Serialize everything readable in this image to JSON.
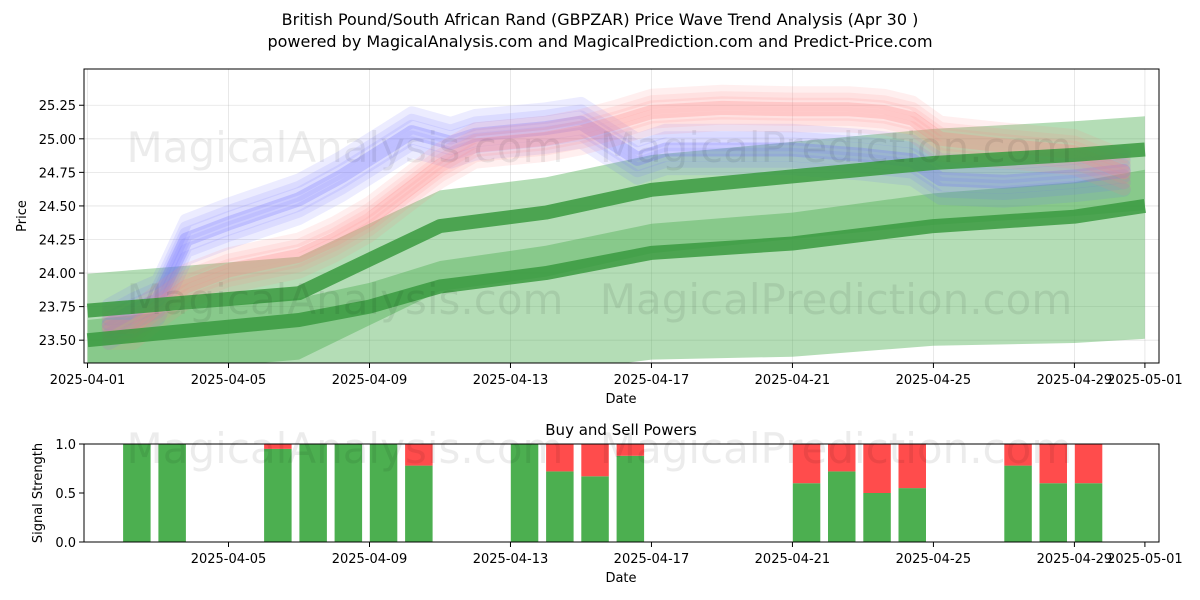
{
  "title_line1": "British Pound/South African Rand (GBPZAR) Price Wave Trend Analysis (Apr 30 )",
  "title_line2": "powered by MagicalAnalysis.com and MagicalPrediction.com and Predict-Price.com",
  "watermarks": [
    "MagicalAnalysis.com",
    "MagicalPrediction.com"
  ],
  "colors": {
    "blue": "#6b6bff",
    "red": "#ff8080",
    "green": "#4caf50",
    "buy": "#4caf50",
    "sell": "#ff4c4c"
  },
  "chart_data": [
    {
      "type": "line",
      "title": "",
      "xlabel": "Date",
      "ylabel": "Price",
      "ylim": [
        23.33,
        25.52
      ],
      "xlim_days": [
        -0.1,
        30.4
      ],
      "x_ticks": [
        "2025-04-01",
        "2025-04-05",
        "2025-04-09",
        "2025-04-13",
        "2025-04-17",
        "2025-04-21",
        "2025-04-25",
        "2025-04-29",
        "2025-05-01"
      ],
      "x_tick_days": [
        0,
        4,
        8,
        12,
        16,
        20,
        24,
        28,
        30
      ],
      "y_ticks": [
        "23.50",
        "23.75",
        "24.00",
        "24.25",
        "24.50",
        "24.75",
        "25.00",
        "25.25"
      ],
      "y_tick_values": [
        23.5,
        23.75,
        24.0,
        24.25,
        24.5,
        24.75,
        25.0,
        25.25
      ],
      "grid": true,
      "series": [
        {
          "name": "blue-wave",
          "color": "#6b6bff",
          "x_days": [
            0.6,
            1.3,
            2.0,
            2.8,
            4.0,
            6.0,
            7.2,
            8.6,
            9.2,
            10.3,
            11.0,
            13.0,
            14.0,
            15.6,
            16.4,
            18.0,
            20.0,
            22.0,
            23.4,
            24.2,
            26.0,
            28.0,
            29.4
          ],
          "values": [
            23.62,
            23.72,
            23.8,
            24.25,
            24.37,
            24.55,
            24.72,
            24.95,
            25.05,
            24.97,
            25.03,
            25.08,
            25.12,
            24.85,
            24.92,
            24.92,
            24.92,
            24.88,
            24.84,
            24.7,
            24.68,
            24.72,
            24.76
          ],
          "band_spread": 0.14
        },
        {
          "name": "red-wave",
          "color": "#ff8080",
          "x_days": [
            0.6,
            1.3,
            2.0,
            2.8,
            4.0,
            6.0,
            7.0,
            8.0,
            9.0,
            10.0,
            11.0,
            13.0,
            14.0,
            15.0,
            16.0,
            18.0,
            20.0,
            21.6,
            22.6,
            23.4,
            24.2,
            26.0,
            28.0,
            29.4
          ],
          "values": [
            23.6,
            23.6,
            23.75,
            23.9,
            24.02,
            24.13,
            24.25,
            24.4,
            24.6,
            24.8,
            24.95,
            25.0,
            25.05,
            25.12,
            25.2,
            25.23,
            25.22,
            25.22,
            25.2,
            25.15,
            25.0,
            24.95,
            24.9,
            24.75
          ],
          "band_spread": 0.12
        },
        {
          "name": "green-trend-upper",
          "color": "#4caf50",
          "x_days": [
            0.0,
            6.0,
            8.0,
            10.0,
            13.0,
            16.0,
            20.0,
            24.0,
            28.0,
            30.0
          ],
          "values": [
            23.72,
            23.85,
            24.1,
            24.35,
            24.45,
            24.62,
            24.72,
            24.82,
            24.88,
            24.92
          ],
          "band_width": 0.08,
          "envelope": [
            0.5,
            0.45
          ]
        },
        {
          "name": "green-trend-lower",
          "color": "#4caf50",
          "x_days": [
            0.0,
            6.0,
            8.0,
            10.0,
            13.0,
            16.0,
            20.0,
            24.0,
            28.0,
            30.0
          ],
          "values": [
            23.5,
            23.65,
            23.75,
            23.9,
            24.0,
            24.15,
            24.22,
            24.35,
            24.42,
            24.5
          ],
          "band_width": 0.08,
          "envelope": [
            0.25,
            0.45
          ]
        }
      ]
    },
    {
      "type": "bar",
      "title": "Buy and Sell Powers",
      "xlabel": "Date",
      "ylabel": "Signal Strength",
      "ylim": [
        0,
        1
      ],
      "y_ticks": [
        "0.0",
        "0.5",
        "1.0"
      ],
      "y_tick_values": [
        0,
        0.5,
        1
      ],
      "x_ticks": [
        "2025-04-05",
        "2025-04-09",
        "2025-04-13",
        "2025-04-17",
        "2025-04-21",
        "2025-04-25",
        "2025-04-29",
        "2025-05-01"
      ],
      "x_tick_days": [
        4,
        8,
        12,
        16,
        20,
        24,
        28,
        30
      ],
      "series": [
        {
          "name": "Buy",
          "color": "#4caf50"
        },
        {
          "name": "Sell",
          "color": "#ff4c4c"
        }
      ],
      "bars": [
        {
          "day": 1.4,
          "buy": 1.0,
          "sell": 0.0
        },
        {
          "day": 2.4,
          "buy": 1.0,
          "sell": 0.0
        },
        {
          "day": 5.4,
          "buy": 0.95,
          "sell": 0.05
        },
        {
          "day": 6.4,
          "buy": 1.0,
          "sell": 0.0
        },
        {
          "day": 7.4,
          "buy": 1.0,
          "sell": 0.0
        },
        {
          "day": 8.4,
          "buy": 1.0,
          "sell": 0.0
        },
        {
          "day": 9.4,
          "buy": 0.78,
          "sell": 0.22
        },
        {
          "day": 12.4,
          "buy": 1.0,
          "sell": 0.0
        },
        {
          "day": 13.4,
          "buy": 0.72,
          "sell": 0.28
        },
        {
          "day": 14.4,
          "buy": 0.67,
          "sell": 0.33
        },
        {
          "day": 15.4,
          "buy": 0.88,
          "sell": 0.12
        },
        {
          "day": 20.4,
          "buy": 0.6,
          "sell": 0.4
        },
        {
          "day": 21.4,
          "buy": 0.72,
          "sell": 0.28
        },
        {
          "day": 22.4,
          "buy": 0.5,
          "sell": 0.5
        },
        {
          "day": 23.4,
          "buy": 0.55,
          "sell": 0.45
        },
        {
          "day": 26.4,
          "buy": 0.78,
          "sell": 0.22
        },
        {
          "day": 27.4,
          "buy": 0.6,
          "sell": 0.4
        },
        {
          "day": 28.4,
          "buy": 0.6,
          "sell": 0.4
        }
      ]
    }
  ]
}
